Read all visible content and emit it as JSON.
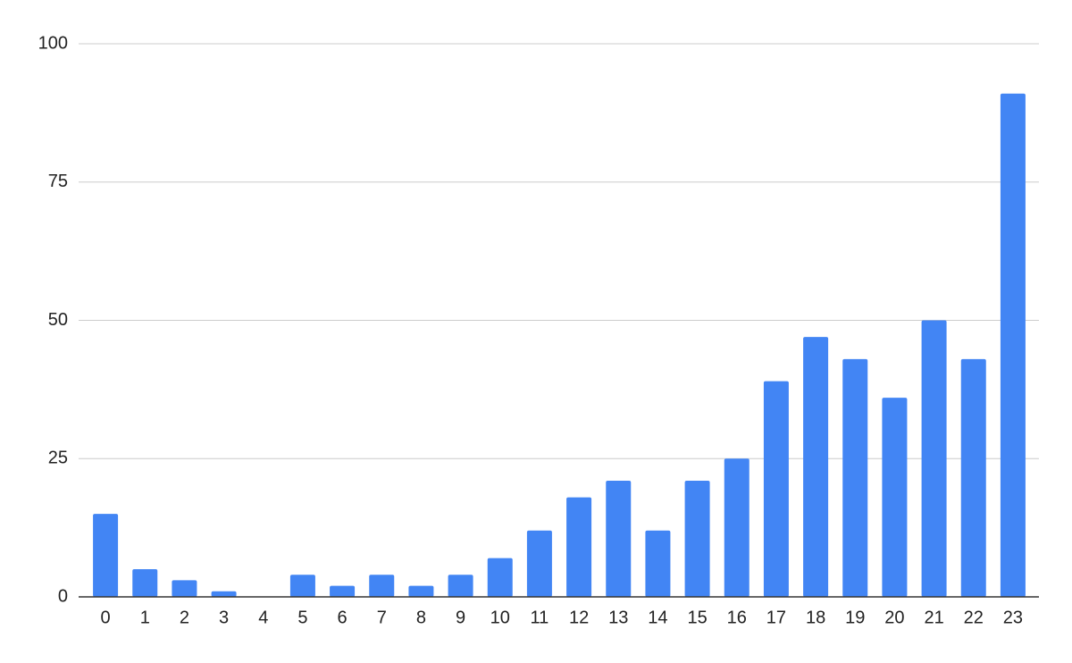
{
  "chart_data": {
    "type": "bar",
    "categories": [
      "0",
      "1",
      "2",
      "3",
      "4",
      "5",
      "6",
      "7",
      "8",
      "9",
      "10",
      "11",
      "12",
      "13",
      "14",
      "15",
      "16",
      "17",
      "18",
      "19",
      "20",
      "21",
      "22",
      "23"
    ],
    "values": [
      15,
      5,
      3,
      1,
      0,
      4,
      2,
      4,
      2,
      4,
      7,
      12,
      18,
      21,
      12,
      21,
      25,
      39,
      47,
      43,
      36,
      50,
      43,
      91
    ],
    "color": "#4285f4",
    "ylim": [
      0,
      100
    ],
    "yticks": [
      0,
      25,
      50,
      75,
      100
    ],
    "grid": true
  }
}
